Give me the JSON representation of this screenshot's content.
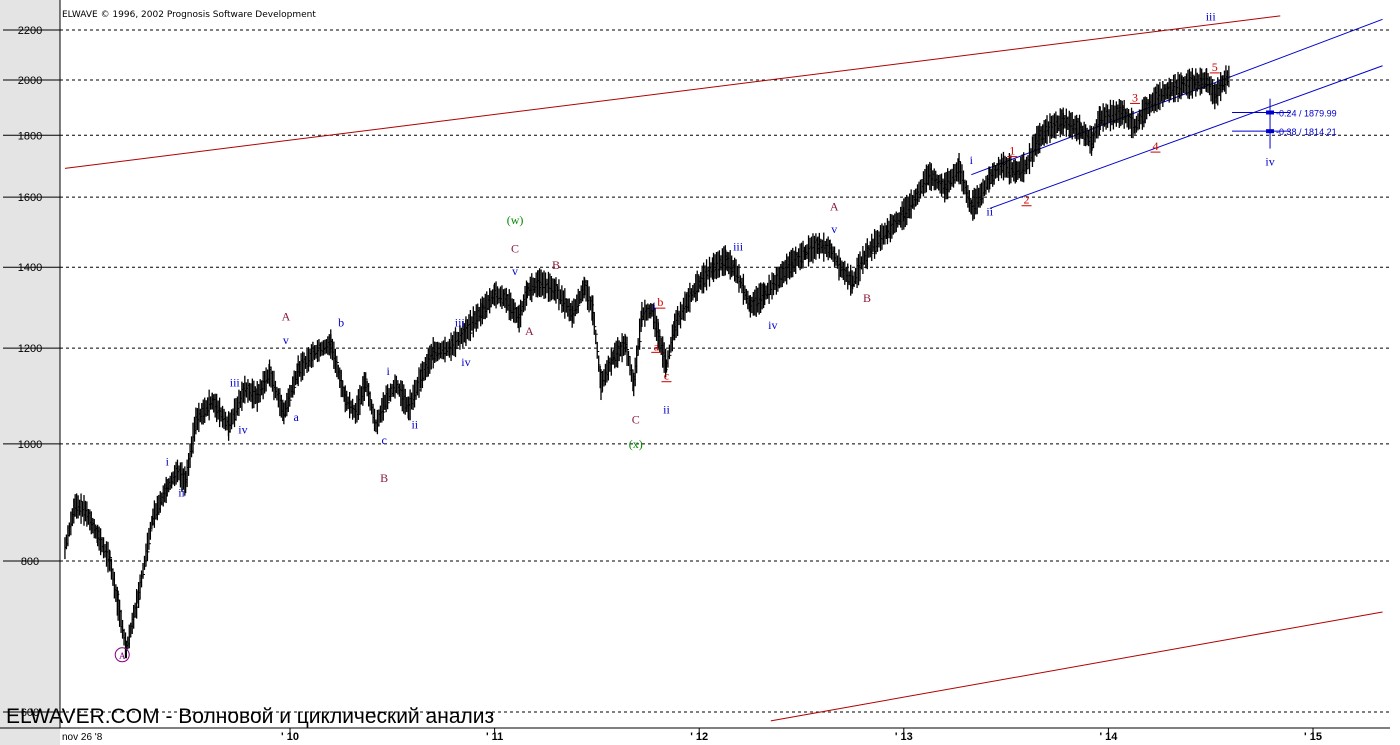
{
  "app": {
    "copyright": "ELWAVE © 1996, 2002 Prognosis Software Development",
    "footer_text": "ELWAVER.COM - Волновой и циклический анализ"
  },
  "colors": {
    "price_bars": "#000000",
    "grid": "#000000",
    "blue_labels": "#0000cc",
    "red_labels": "#cc0000",
    "maroon_labels": "#8b1a3a",
    "green_labels": "#008800",
    "purple_labels": "#800080",
    "red_channel": "#b00000",
    "blue_channel": "#0000cc"
  },
  "chart_data": {
    "type": "line",
    "y_scale": "log",
    "ylim": [
      600,
      2300
    ],
    "y_ticks": [
      600,
      800,
      1000,
      1200,
      1400,
      1600,
      1800,
      2000,
      2200
    ],
    "x_start_label": "nov 26 '8",
    "x_ticks": [
      "' 10",
      "' 11",
      "' 12",
      "' 13",
      "' 14",
      "' 15"
    ],
    "grid": true,
    "series": [
      {
        "x": [
          2008.9,
          2008.95,
          2009.0,
          2009.06,
          2009.12,
          2009.16,
          2009.2,
          2009.26,
          2009.33,
          2009.4,
          2009.45,
          2009.49,
          2009.54,
          2009.62,
          2009.7,
          2009.78,
          2009.84,
          2009.9,
          2009.97,
          2010.04,
          2010.12,
          2010.2,
          2010.27,
          2010.32,
          2010.37,
          2010.42,
          2010.47,
          2010.52,
          2010.58,
          2010.64,
          2010.7,
          2010.78,
          2010.86,
          2010.94,
          2011.0,
          2011.05,
          2011.12,
          2011.16,
          2011.22,
          2011.3,
          2011.38,
          2011.44,
          2011.48,
          2011.52,
          2011.58,
          2011.64,
          2011.68,
          2011.72,
          2011.77,
          2011.8,
          2011.84,
          2011.88,
          2011.94,
          2012.0,
          2012.07,
          2012.13,
          2012.18,
          2012.25,
          2012.32,
          2012.37,
          2012.45,
          2012.52,
          2012.58,
          2012.64,
          2012.69,
          2012.75,
          2012.8,
          2012.85,
          2012.92,
          2013.0,
          2013.06,
          2013.12,
          2013.2,
          2013.27,
          2013.33,
          2013.38,
          2013.42,
          2013.48,
          2013.55,
          2013.6,
          2013.65,
          2013.7,
          2013.78,
          2013.86,
          2013.92,
          2013.96,
          2014.01,
          2014.07,
          2014.13,
          2014.18,
          2014.23,
          2014.29,
          2014.36,
          2014.42,
          2014.48,
          2014.52,
          2014.56,
          2014.59
        ],
        "values": [
          820,
          890,
          880,
          840,
          800,
          735,
          676,
          750,
          870,
          920,
          950,
          930,
          1045,
          1085,
          1035,
          1110,
          1095,
          1145,
          1060,
          1150,
          1190,
          1210,
          1090,
          1060,
          1125,
          1035,
          1090,
          1120,
          1070,
          1135,
          1190,
          1200,
          1240,
          1290,
          1330,
          1320,
          1270,
          1340,
          1360,
          1340,
          1280,
          1350,
          1290,
          1120,
          1180,
          1210,
          1120,
          1280,
          1290,
          1230,
          1160,
          1250,
          1310,
          1360,
          1400,
          1420,
          1390,
          1300,
          1330,
          1360,
          1410,
          1440,
          1460,
          1450,
          1400,
          1360,
          1420,
          1460,
          1500,
          1550,
          1600,
          1670,
          1630,
          1690,
          1570,
          1610,
          1660,
          1700,
          1680,
          1700,
          1780,
          1820,
          1850,
          1820,
          1780,
          1860,
          1870,
          1880,
          1830,
          1890,
          1930,
          1960,
          1980,
          1990,
          2000,
          1940,
          1990,
          2015
        ]
      }
    ],
    "annotations": [
      {
        "text": "(A)",
        "date": 2009.18,
        "price": 664,
        "color": "purple",
        "circle": true
      },
      {
        "text": "i",
        "date": 2009.4,
        "price": 960,
        "color": "blue"
      },
      {
        "text": "ii",
        "date": 2009.47,
        "price": 905,
        "color": "blue"
      },
      {
        "text": "iii",
        "date": 2009.73,
        "price": 1115,
        "color": "blue"
      },
      {
        "text": "iv",
        "date": 2009.77,
        "price": 1020,
        "color": "blue"
      },
      {
        "text": "A",
        "date": 2009.98,
        "price": 1265,
        "color": "maroon"
      },
      {
        "text": "v",
        "date": 2009.98,
        "price": 1210,
        "color": "blue"
      },
      {
        "text": "a",
        "date": 2010.03,
        "price": 1045,
        "color": "blue"
      },
      {
        "text": "b",
        "date": 2010.25,
        "price": 1250,
        "color": "blue"
      },
      {
        "text": "c",
        "date": 2010.46,
        "price": 1000,
        "color": "blue"
      },
      {
        "text": "B",
        "date": 2010.46,
        "price": 930,
        "color": "maroon"
      },
      {
        "text": "i",
        "date": 2010.48,
        "price": 1140,
        "color": "blue"
      },
      {
        "text": "ii",
        "date": 2010.61,
        "price": 1030,
        "color": "blue"
      },
      {
        "text": "iii",
        "date": 2010.83,
        "price": 1250,
        "color": "blue"
      },
      {
        "text": "iv",
        "date": 2010.86,
        "price": 1160,
        "color": "blue"
      },
      {
        "text": "(w)",
        "date": 2011.1,
        "price": 1520,
        "color": "green"
      },
      {
        "text": "C",
        "date": 2011.1,
        "price": 1440,
        "color": "maroon"
      },
      {
        "text": "v",
        "date": 2011.1,
        "price": 1380,
        "color": "blue"
      },
      {
        "text": "A",
        "date": 2011.17,
        "price": 1230,
        "color": "maroon"
      },
      {
        "text": "B",
        "date": 2011.3,
        "price": 1395,
        "color": "maroon"
      },
      {
        "text": "C",
        "date": 2011.69,
        "price": 1040,
        "color": "maroon"
      },
      {
        "text": "(x)",
        "date": 2011.69,
        "price": 992,
        "color": "green"
      },
      {
        "text": "i",
        "date": 2011.78,
        "price": 1290,
        "color": "blue"
      },
      {
        "text": "b",
        "date": 2011.81,
        "price": 1300,
        "color": "red",
        "underline": true
      },
      {
        "text": "a",
        "date": 2011.79,
        "price": 1195,
        "color": "red",
        "underline": true
      },
      {
        "text": "c",
        "date": 2011.84,
        "price": 1130,
        "color": "red",
        "underline": true
      },
      {
        "text": "ii",
        "date": 2011.84,
        "price": 1060,
        "color": "blue"
      },
      {
        "text": "iii",
        "date": 2012.19,
        "price": 1445,
        "color": "blue"
      },
      {
        "text": "iv",
        "date": 2012.36,
        "price": 1245,
        "color": "blue"
      },
      {
        "text": "A",
        "date": 2012.66,
        "price": 1560,
        "color": "maroon"
      },
      {
        "text": "v",
        "date": 2012.66,
        "price": 1495,
        "color": "blue"
      },
      {
        "text": "B",
        "date": 2012.82,
        "price": 1310,
        "color": "maroon"
      },
      {
        "text": "i",
        "date": 2013.33,
        "price": 1705,
        "color": "blue"
      },
      {
        "text": "ii",
        "date": 2013.42,
        "price": 1545,
        "color": "blue"
      },
      {
        "text": "1",
        "date": 2013.53,
        "price": 1735,
        "color": "red",
        "underline": true
      },
      {
        "text": "2",
        "date": 2013.6,
        "price": 1580,
        "color": "red",
        "underline": true
      },
      {
        "text": "3",
        "date": 2014.13,
        "price": 1920,
        "color": "red",
        "underline": true
      },
      {
        "text": "4",
        "date": 2014.23,
        "price": 1750,
        "color": "red",
        "underline": true
      },
      {
        "text": "5",
        "date": 2014.52,
        "price": 2035,
        "color": "red",
        "underline": true
      },
      {
        "text": "iii",
        "date": 2014.5,
        "price": 2240,
        "color": "blue"
      },
      {
        "text": "iv",
        "date": 2014.79,
        "price": 1700,
        "color": "blue"
      }
    ],
    "targets": [
      {
        "label": "-0.24 / 1879.99",
        "price": 1879.99,
        "color": "blue"
      },
      {
        "label": "-0.38 / 1814.21",
        "price": 1814.21,
        "color": "blue"
      }
    ],
    "trendlines": [
      {
        "color": "red_channel",
        "from": {
          "date": 2008.9,
          "price": 1690
        },
        "to": {
          "date": 2014.84,
          "price": 2260
        }
      },
      {
        "color": "red_channel",
        "from": {
          "date": 2012.35,
          "price": 590
        },
        "to": {
          "date": 2015.34,
          "price": 726
        }
      },
      {
        "color": "blue_channel",
        "from": {
          "date": 2013.33,
          "price": 1670
        },
        "to": {
          "date": 2015.34,
          "price": 2245
        }
      },
      {
        "color": "blue_channel",
        "from": {
          "date": 2013.42,
          "price": 1566
        },
        "to": {
          "date": 2015.34,
          "price": 2055
        }
      }
    ]
  }
}
